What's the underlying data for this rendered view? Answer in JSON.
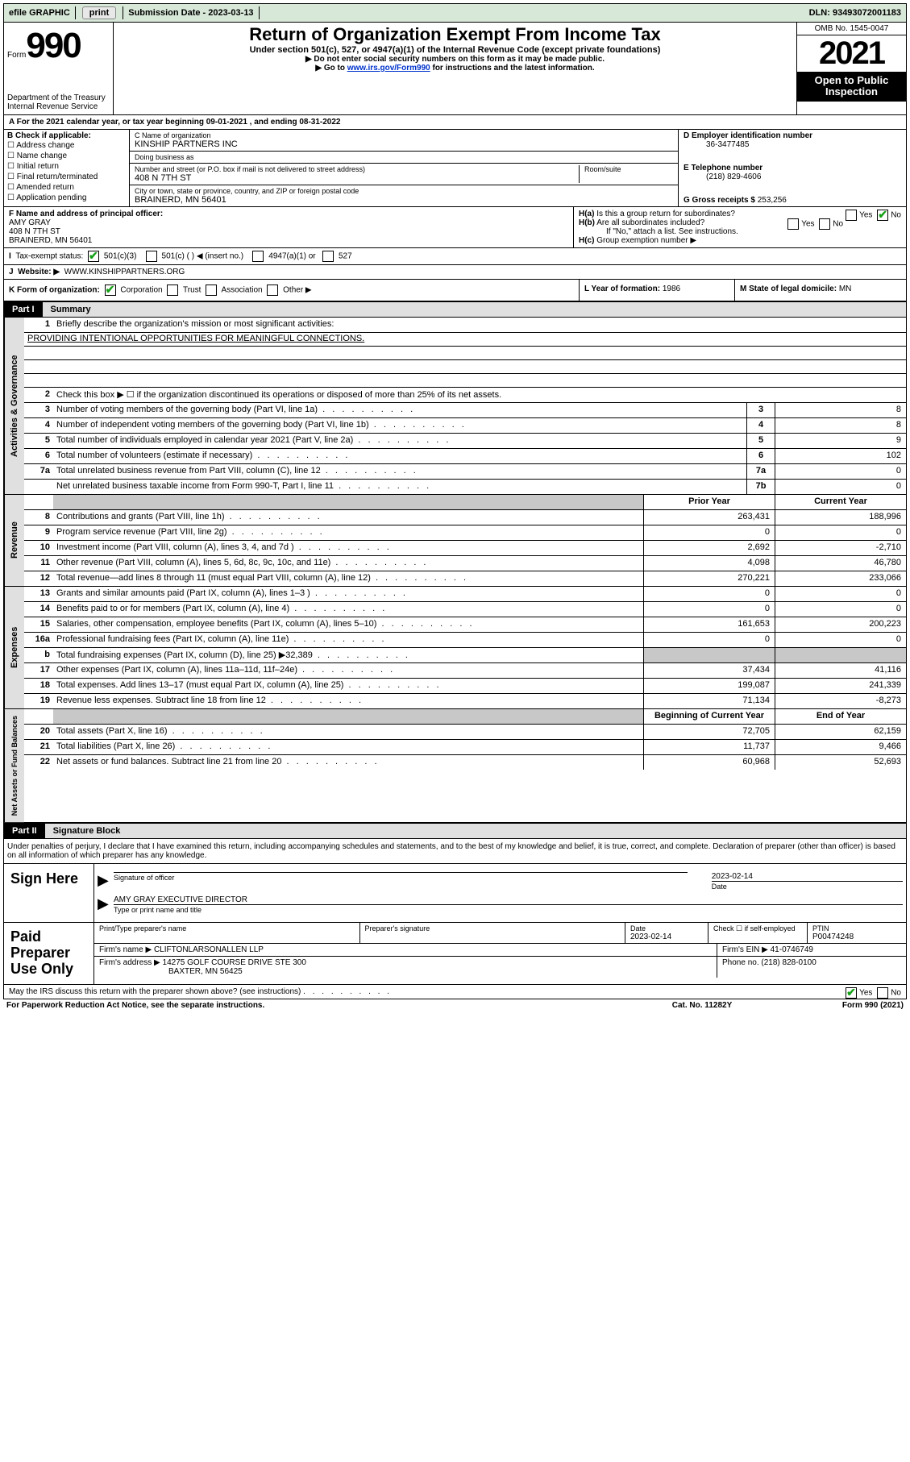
{
  "topbar": {
    "efile": "efile GRAPHIC",
    "print": "print",
    "subdate_lbl": "Submission Date - ",
    "subdate": "2023-03-13",
    "dln_lbl": "DLN: ",
    "dln": "93493072001183"
  },
  "header": {
    "form_word": "Form",
    "form_num": "990",
    "dept": "Department of the Treasury\nInternal Revenue Service",
    "title": "Return of Organization Exempt From Income Tax",
    "sub": "Under section 501(c), 527, or 4947(a)(1) of the Internal Revenue Code (except private foundations)",
    "note1": "▶ Do not enter social security numbers on this form as it may be made public.",
    "note2_a": "▶ Go to ",
    "note2_link": "www.irs.gov/Form990",
    "note2_b": " for instructions and the latest information.",
    "omb": "OMB No. 1545-0047",
    "year": "2021",
    "inspect": "Open to Public Inspection"
  },
  "A": {
    "text": "A For the 2021 calendar year, or tax year beginning ",
    "begin": "09-01-2021",
    "mid": " , and ending ",
    "end": "08-31-2022"
  },
  "B": {
    "label": "B Check if applicable:",
    "opts": [
      "Address change",
      "Name change",
      "Initial return",
      "Final return/terminated",
      "Amended return",
      "Application pending"
    ]
  },
  "C": {
    "name_lbl": "C Name of organization",
    "name": "KINSHIP PARTNERS INC",
    "dba_lbl": "Doing business as",
    "dba": "",
    "addr_lbl": "Number and street (or P.O. box if mail is not delivered to street address)",
    "room_lbl": "Room/suite",
    "addr": "408 N 7TH ST",
    "city_lbl": "City or town, state or province, country, and ZIP or foreign postal code",
    "city": "BRAINERD, MN  56401"
  },
  "D": {
    "lbl": "D Employer identification number",
    "val": "36-3477485"
  },
  "E": {
    "lbl": "E Telephone number",
    "val": "(218) 829-4606"
  },
  "G": {
    "lbl": "G Gross receipts $",
    "val": "253,256"
  },
  "F": {
    "lbl": "F Name and address of principal officer:",
    "name": "AMY GRAY",
    "addr1": "408 N 7TH ST",
    "addr2": "BRAINERD, MN  56401"
  },
  "H": {
    "a": "Is this a group return for subordinates?",
    "b": "Are all subordinates included?",
    "note": "If \"No,\" attach a list. See instructions.",
    "c": "Group exemption number ▶",
    "yes": "Yes",
    "no": "No"
  },
  "I": {
    "lbl": "Tax-exempt status:",
    "c1": "501(c)(3)",
    "c2": "501(c) (  ) ◀ (insert no.)",
    "c3": "4947(a)(1) or",
    "c4": "527"
  },
  "J": {
    "lbl": "Website: ▶",
    "val": "WWW.KINSHIPPARTNERS.ORG"
  },
  "K": {
    "lbl": "K Form of organization:",
    "c1": "Corporation",
    "c2": "Trust",
    "c3": "Association",
    "c4": "Other ▶"
  },
  "L": {
    "lbl": "L Year of formation:",
    "val": "1986"
  },
  "M": {
    "lbl": "M State of legal domicile:",
    "val": "MN"
  },
  "part1": {
    "num": "Part I",
    "title": "Summary"
  },
  "p1": {
    "l1a": "Briefly describe the organization's mission or most significant activities:",
    "l1b": "PROVIDING INTENTIONAL OPPORTUNITIES FOR MEANINGFUL CONNECTIONS.",
    "l2": "Check this box ▶ ☐ if the organization discontinued its operations or disposed of more than 25% of its net assets.",
    "rows_simple": [
      {
        "n": "3",
        "d": "Number of voting members of the governing body (Part VI, line 1a)",
        "box": "3",
        "v": "8"
      },
      {
        "n": "4",
        "d": "Number of independent voting members of the governing body (Part VI, line 1b)",
        "box": "4",
        "v": "8"
      },
      {
        "n": "5",
        "d": "Total number of individuals employed in calendar year 2021 (Part V, line 2a)",
        "box": "5",
        "v": "9"
      },
      {
        "n": "6",
        "d": "Total number of volunteers (estimate if necessary)",
        "box": "6",
        "v": "102"
      },
      {
        "n": "7a",
        "d": "Total unrelated business revenue from Part VIII, column (C), line 12",
        "box": "7a",
        "v": "0"
      },
      {
        "n": "",
        "d": "Net unrelated business taxable income from Form 990-T, Part I, line 11",
        "box": "7b",
        "v": "0"
      }
    ],
    "col_hdr_prior": "Prior Year",
    "col_hdr_curr": "Current Year",
    "rev": [
      {
        "n": "8",
        "d": "Contributions and grants (Part VIII, line 1h)",
        "p": "263,431",
        "c": "188,996"
      },
      {
        "n": "9",
        "d": "Program service revenue (Part VIII, line 2g)",
        "p": "0",
        "c": "0"
      },
      {
        "n": "10",
        "d": "Investment income (Part VIII, column (A), lines 3, 4, and 7d )",
        "p": "2,692",
        "c": "-2,710"
      },
      {
        "n": "11",
        "d": "Other revenue (Part VIII, column (A), lines 5, 6d, 8c, 9c, 10c, and 11e)",
        "p": "4,098",
        "c": "46,780"
      },
      {
        "n": "12",
        "d": "Total revenue—add lines 8 through 11 (must equal Part VIII, column (A), line 12)",
        "p": "270,221",
        "c": "233,066"
      }
    ],
    "exp": [
      {
        "n": "13",
        "d": "Grants and similar amounts paid (Part IX, column (A), lines 1–3 )",
        "p": "0",
        "c": "0"
      },
      {
        "n": "14",
        "d": "Benefits paid to or for members (Part IX, column (A), line 4)",
        "p": "0",
        "c": "0"
      },
      {
        "n": "15",
        "d": "Salaries, other compensation, employee benefits (Part IX, column (A), lines 5–10)",
        "p": "161,653",
        "c": "200,223"
      },
      {
        "n": "16a",
        "d": "Professional fundraising fees (Part IX, column (A), line 11e)",
        "p": "0",
        "c": "0"
      },
      {
        "n": "b",
        "d": "Total fundraising expenses (Part IX, column (D), line 25) ▶32,389",
        "p": "",
        "c": "",
        "shade": true
      },
      {
        "n": "17",
        "d": "Other expenses (Part IX, column (A), lines 11a–11d, 11f–24e)",
        "p": "37,434",
        "c": "41,116"
      },
      {
        "n": "18",
        "d": "Total expenses. Add lines 13–17 (must equal Part IX, column (A), line 25)",
        "p": "199,087",
        "c": "241,339"
      },
      {
        "n": "19",
        "d": "Revenue less expenses. Subtract line 18 from line 12",
        "p": "71,134",
        "c": "-8,273"
      }
    ],
    "na_hdr_b": "Beginning of Current Year",
    "na_hdr_e": "End of Year",
    "na": [
      {
        "n": "20",
        "d": "Total assets (Part X, line 16)",
        "p": "72,705",
        "c": "62,159"
      },
      {
        "n": "21",
        "d": "Total liabilities (Part X, line 26)",
        "p": "11,737",
        "c": "9,466"
      },
      {
        "n": "22",
        "d": "Net assets or fund balances. Subtract line 21 from line 20",
        "p": "60,968",
        "c": "52,693"
      }
    ],
    "side_gov": "Activities & Governance",
    "side_rev": "Revenue",
    "side_exp": "Expenses",
    "side_na": "Net Assets or Fund Balances"
  },
  "part2": {
    "num": "Part II",
    "title": "Signature Block"
  },
  "sig": {
    "decl": "Under penalties of perjury, I declare that I have examined this return, including accompanying schedules and statements, and to the best of my knowledge and belief, it is true, correct, and complete. Declaration of preparer (other than officer) is based on all information of which preparer has any knowledge.",
    "here": "Sign Here",
    "officer": "Signature of officer",
    "date_lbl": "Date",
    "date": "2023-02-14",
    "name": "AMY GRAY EXECUTIVE DIRECTOR",
    "name_lbl": "Type or print name and title"
  },
  "prep": {
    "lbl": "Paid Preparer Use Only",
    "pt_name_lbl": "Print/Type preparer's name",
    "sig_lbl": "Preparer's signature",
    "date_lbl": "Date",
    "date": "2023-02-14",
    "self_lbl": "Check ☐ if self-employed",
    "ptin_lbl": "PTIN",
    "ptin": "P00474248",
    "firm_name_lbl": "Firm's name ▶",
    "firm_name": "CLIFTONLARSONALLEN LLP",
    "firm_ein_lbl": "Firm's EIN ▶",
    "firm_ein": "41-0746749",
    "firm_addr_lbl": "Firm's address ▶",
    "firm_addr1": "14275 GOLF COURSE DRIVE STE 300",
    "firm_addr2": "BAXTER, MN  56425",
    "phone_lbl": "Phone no.",
    "phone": "(218) 828-0100"
  },
  "discuss": "May the IRS discuss this return with the preparer shown above? (see instructions)",
  "footer": {
    "pra": "For Paperwork Reduction Act Notice, see the separate instructions.",
    "cat": "Cat. No. 11282Y",
    "form": "Form 990 (2021)"
  }
}
